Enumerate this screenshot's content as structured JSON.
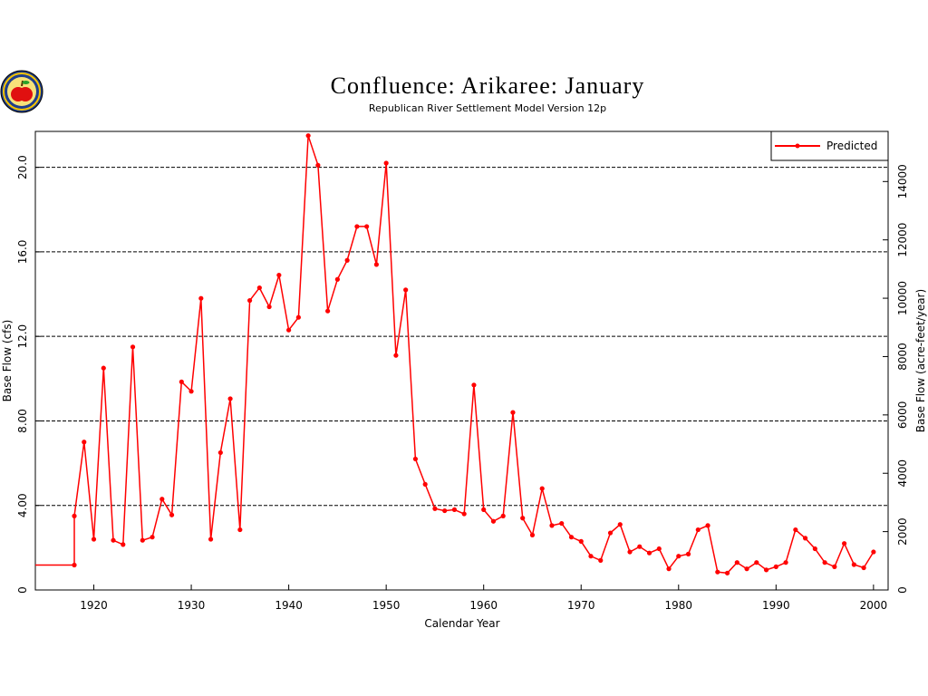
{
  "logo": {
    "icon": "apple-seal-icon"
  },
  "chart_data": {
    "type": "line",
    "title": "Confluence: Arikaree: January",
    "subtitle": "Republican River Settlement Model Version 12p",
    "xlabel": "Calendar Year",
    "ylabel": "Base Flow (cfs)",
    "y2label": "Base Flow (acre-feet/year)",
    "xlim": [
      1914,
      2001.5
    ],
    "ylim": [
      0,
      21.7
    ],
    "y2lim": [
      0,
      15718
    ],
    "xticks": [
      1920,
      1930,
      1940,
      1950,
      1960,
      1970,
      1980,
      1990,
      2000
    ],
    "yticks": [
      0,
      4,
      8,
      12,
      16,
      20
    ],
    "ytick_labels": [
      "0",
      "4.00",
      "8.00",
      "12.0",
      "16.0",
      "20.0"
    ],
    "y2ticks": [
      0,
      2000,
      4000,
      6000,
      8000,
      10000,
      12000,
      14000
    ],
    "y2tick_labels": [
      "0",
      "2000",
      "4000",
      "6000",
      "8000",
      "10000",
      "12000",
      "14000"
    ],
    "grid_y": [
      4,
      8,
      12,
      16,
      20
    ],
    "legend": {
      "position": "top-right"
    },
    "color": "#ff0000",
    "series": [
      {
        "name": "Predicted",
        "x": [
          1914,
          1918,
          1918,
          1919,
          1920,
          1921,
          1922,
          1923,
          1924,
          1925,
          1926,
          1927,
          1928,
          1929,
          1930,
          1931,
          1932,
          1933,
          1934,
          1935,
          1936,
          1937,
          1938,
          1939,
          1940,
          1941,
          1942,
          1943,
          1944,
          1945,
          1946,
          1947,
          1948,
          1949,
          1950,
          1951,
          1952,
          1953,
          1954,
          1955,
          1956,
          1957,
          1958,
          1959,
          1960,
          1961,
          1962,
          1963,
          1964,
          1965,
          1966,
          1967,
          1968,
          1969,
          1970,
          1971,
          1972,
          1973,
          1974,
          1975,
          1976,
          1977,
          1978,
          1979,
          1980,
          1981,
          1982,
          1983,
          1984,
          1985,
          1986,
          1987,
          1988,
          1989,
          1990,
          1991,
          1992,
          1993,
          1994,
          1995,
          1996,
          1997,
          1998,
          1999,
          2000
        ],
        "values": [
          1.18,
          1.18,
          3.5,
          7.0,
          2.4,
          10.5,
          2.35,
          2.15,
          11.5,
          2.35,
          2.5,
          4.3,
          3.55,
          9.85,
          9.4,
          13.8,
          2.4,
          6.5,
          9.05,
          2.85,
          13.7,
          14.3,
          13.4,
          14.9,
          12.3,
          12.9,
          21.5,
          20.1,
          13.2,
          14.7,
          15.6,
          17.2,
          17.2,
          15.4,
          20.2,
          11.1,
          14.2,
          6.2,
          5.0,
          3.85,
          3.75,
          3.8,
          3.6,
          9.7,
          3.8,
          3.25,
          3.5,
          8.4,
          3.4,
          2.6,
          4.8,
          3.05,
          3.15,
          2.5,
          2.3,
          1.6,
          1.4,
          2.7,
          3.1,
          1.8,
          2.05,
          1.75,
          1.95,
          1.0,
          1.6,
          1.7,
          2.85,
          3.05,
          0.85,
          0.8,
          1.3,
          1.0,
          1.3,
          0.95,
          1.1,
          1.3,
          2.85,
          2.45,
          1.95,
          1.3,
          1.1,
          2.2,
          1.2,
          1.05,
          1.8
        ]
      }
    ]
  }
}
